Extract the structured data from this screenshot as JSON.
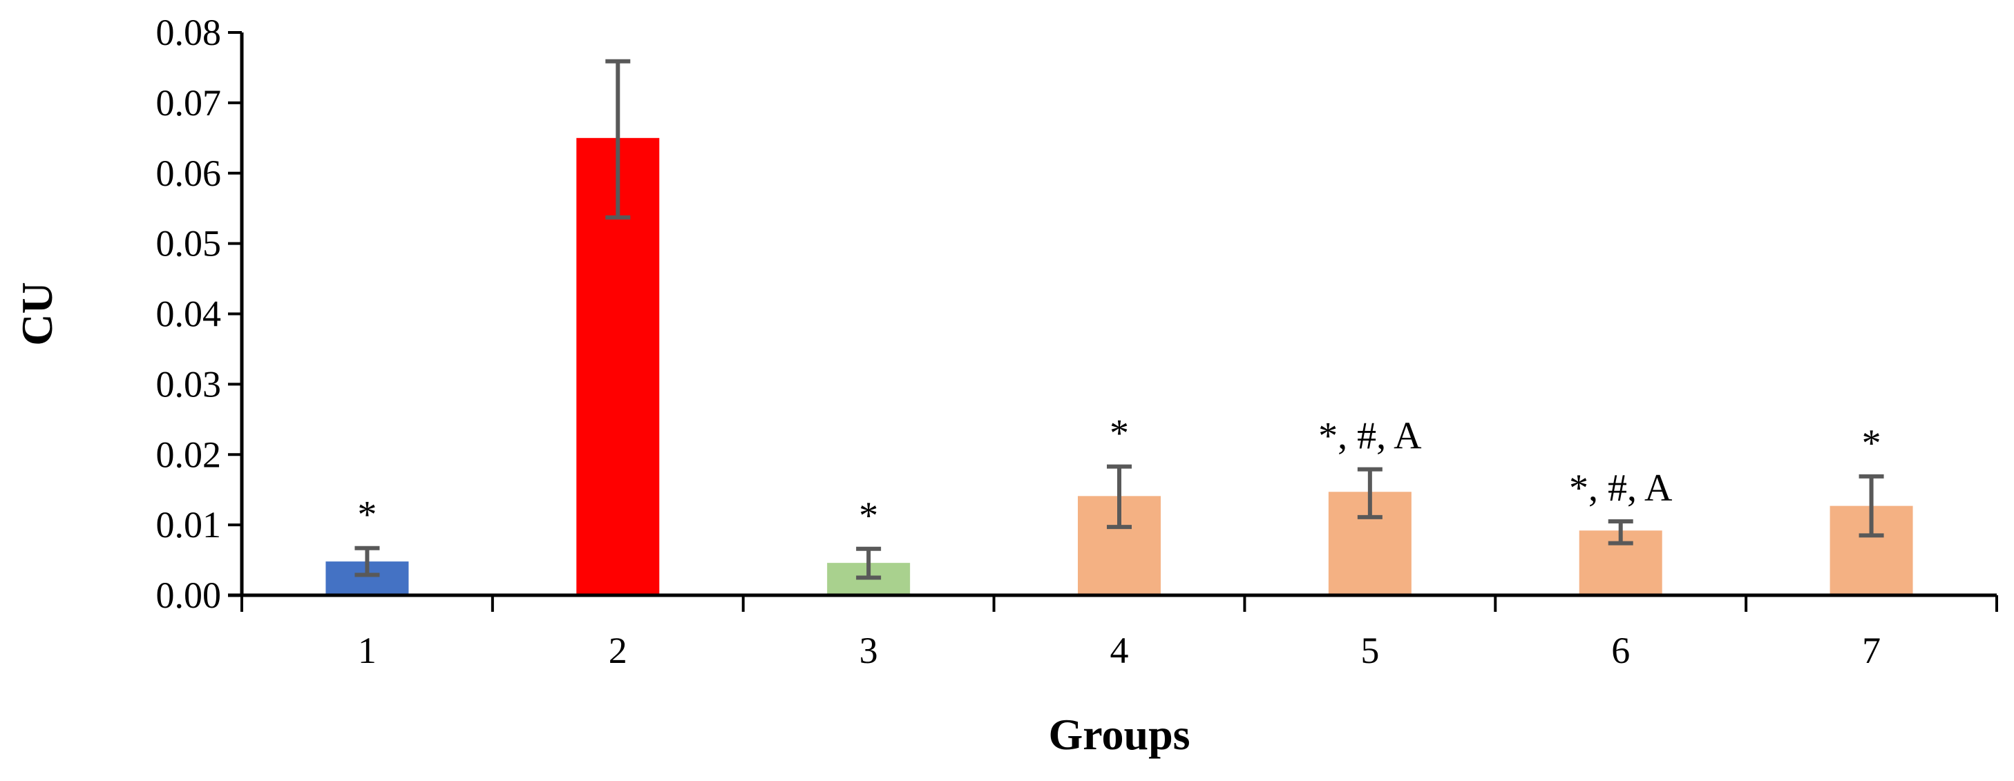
{
  "chart_data": {
    "type": "bar",
    "title": "",
    "xlabel": "Groups",
    "ylabel": "CU",
    "ylim": [
      0,
      0.08
    ],
    "yticks": [
      "0.00",
      "0.01",
      "0.02",
      "0.03",
      "0.04",
      "0.05",
      "0.06",
      "0.07",
      "0.08"
    ],
    "categories": [
      "1",
      "2",
      "3",
      "4",
      "5",
      "6",
      "7"
    ],
    "values": [
      0.0048,
      0.065,
      0.0046,
      0.0141,
      0.0147,
      0.0092,
      0.0127
    ],
    "error_low": [
      0.0029,
      0.0537,
      0.0025,
      0.0097,
      0.0111,
      0.0074,
      0.0085
    ],
    "error_high": [
      0.0067,
      0.0759,
      0.0066,
      0.0183,
      0.0179,
      0.0105,
      0.0169
    ],
    "annotations": [
      "*",
      "",
      "*",
      "*",
      "*, #, A",
      "*, #, A",
      "*"
    ],
    "colors": [
      "#4472C4",
      "#FF0000",
      "#A9D18E",
      "#F4B183",
      "#F4B183",
      "#F4B183",
      "#F4B183"
    ],
    "error_bar_color": "#595959",
    "grid": false,
    "legend": "none"
  }
}
